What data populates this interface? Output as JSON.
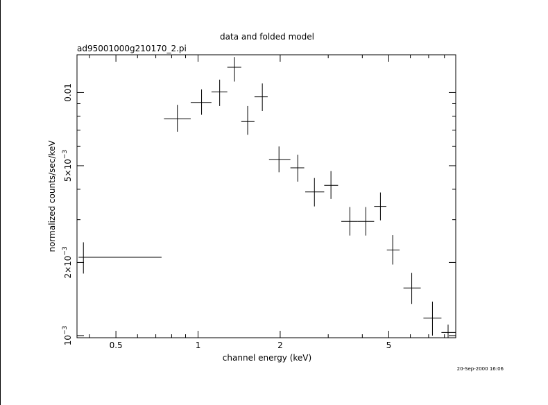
{
  "chart_data": {
    "type": "scatter",
    "title": "data and folded model",
    "subtitle": "ad95001000g210170_2.pi",
    "xlabel": "channel energy (keV)",
    "ylabel": "normalized counts/sec/keV",
    "timestamp": "20-Sep-2000 16:06",
    "x_scale": "log",
    "y_scale": "log",
    "xlim": [
      0.36,
      8.8
    ],
    "ylim": [
      0.00098,
      0.0143
    ],
    "x_tick_labels": [
      {
        "value": 0.5,
        "label": "0.5"
      },
      {
        "value": 1,
        "label": "1"
      },
      {
        "value": 2,
        "label": "2"
      },
      {
        "value": 5,
        "label": "5"
      }
    ],
    "y_tick_labels": [
      {
        "value": 0.001,
        "label": "10",
        "exp": "−3"
      },
      {
        "value": 0.002,
        "label": "2×10",
        "exp": "−3"
      },
      {
        "value": 0.005,
        "label": "5×10",
        "exp": "−3"
      },
      {
        "value": 0.01,
        "label": "0.01",
        "exp": ""
      }
    ],
    "points": [
      {
        "x": 0.38,
        "xlo": 0.365,
        "xhi": 0.735,
        "y": 0.0021,
        "ylo": 0.0018,
        "yhi": 0.00242
      },
      {
        "x": 0.84,
        "xlo": 0.75,
        "xhi": 0.94,
        "y": 0.0078,
        "ylo": 0.0069,
        "yhi": 0.0089
      },
      {
        "x": 1.03,
        "xlo": 0.94,
        "xhi": 1.12,
        "y": 0.0091,
        "ylo": 0.0081,
        "yhi": 0.0103
      },
      {
        "x": 1.2,
        "xlo": 1.12,
        "xhi": 1.28,
        "y": 0.01005,
        "ylo": 0.0088,
        "yhi": 0.0113
      },
      {
        "x": 1.36,
        "xlo": 1.28,
        "xhi": 1.44,
        "y": 0.0127,
        "ylo": 0.0111,
        "yhi": 0.014
      },
      {
        "x": 1.52,
        "xlo": 1.44,
        "xhi": 1.61,
        "y": 0.0076,
        "ylo": 0.0067,
        "yhi": 0.0088
      },
      {
        "x": 1.72,
        "xlo": 1.61,
        "xhi": 1.8,
        "y": 0.0096,
        "ylo": 0.0084,
        "yhi": 0.0109
      },
      {
        "x": 1.98,
        "xlo": 1.82,
        "xhi": 2.18,
        "y": 0.0053,
        "ylo": 0.0047,
        "yhi": 0.006
      },
      {
        "x": 2.32,
        "xlo": 2.18,
        "xhi": 2.45,
        "y": 0.0049,
        "ylo": 0.0043,
        "yhi": 0.00555
      },
      {
        "x": 2.67,
        "xlo": 2.47,
        "xhi": 2.9,
        "y": 0.0039,
        "ylo": 0.0034,
        "yhi": 0.00445
      },
      {
        "x": 3.07,
        "xlo": 2.9,
        "xhi": 3.26,
        "y": 0.00415,
        "ylo": 0.00365,
        "yhi": 0.00475
      },
      {
        "x": 3.6,
        "xlo": 3.35,
        "xhi": 3.84,
        "y": 0.00295,
        "ylo": 0.00258,
        "yhi": 0.00338
      },
      {
        "x": 4.12,
        "xlo": 3.84,
        "xhi": 4.42,
        "y": 0.00295,
        "ylo": 0.00258,
        "yhi": 0.00338
      },
      {
        "x": 4.66,
        "xlo": 4.42,
        "xhi": 4.9,
        "y": 0.0034,
        "ylo": 0.00298,
        "yhi": 0.00388
      },
      {
        "x": 5.17,
        "xlo": 4.92,
        "xhi": 5.48,
        "y": 0.00225,
        "ylo": 0.00196,
        "yhi": 0.00259
      },
      {
        "x": 6.07,
        "xlo": 5.66,
        "xhi": 6.55,
        "y": 0.00157,
        "ylo": 0.00135,
        "yhi": 0.00181
      },
      {
        "x": 7.23,
        "xlo": 6.7,
        "xhi": 7.8,
        "y": 0.00118,
        "ylo": 0.001,
        "yhi": 0.00138
      },
      {
        "x": 8.25,
        "xlo": 7.8,
        "xhi": 8.8,
        "y": 0.00103,
        "ylo": 0.00098,
        "yhi": 0.00111
      }
    ]
  }
}
